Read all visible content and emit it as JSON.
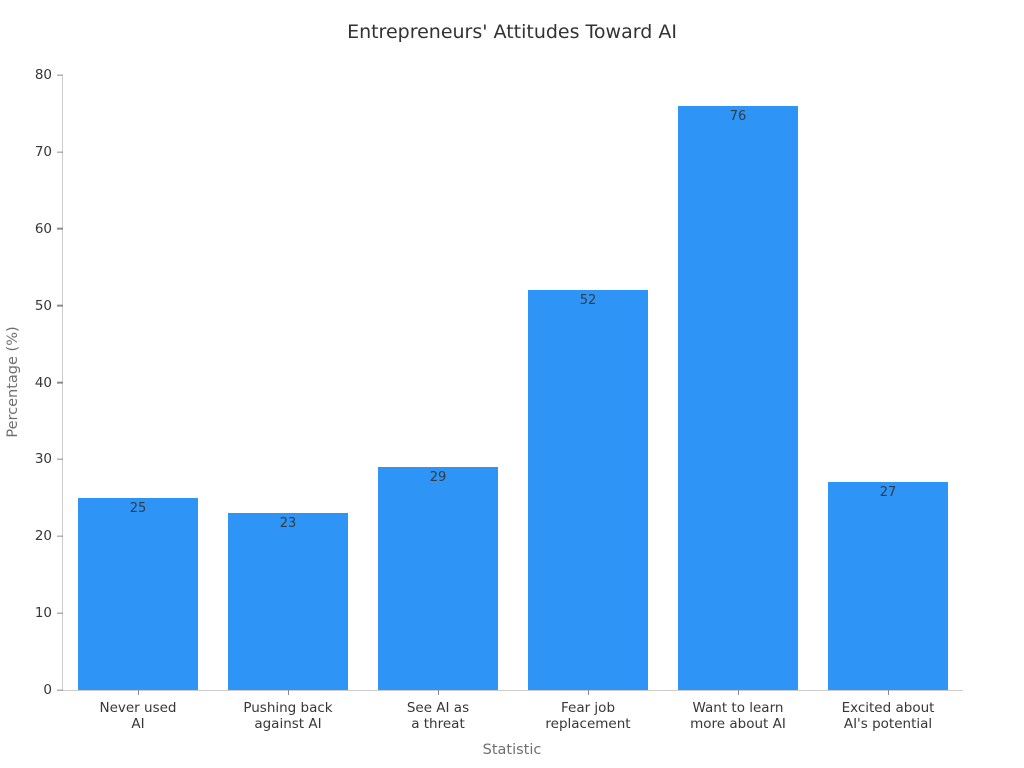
{
  "chart_data": {
    "type": "bar",
    "title": "Entrepreneurs' Attitudes Toward AI",
    "xlabel": "Statistic",
    "ylabel": "Percentage (%)",
    "categories": [
      "Never used\nAI",
      "Pushing back\nagainst AI",
      "See AI as\na threat",
      "Fear job\nreplacement",
      "Want to learn\nmore about AI",
      "Excited about\nAI's potential"
    ],
    "values": [
      25,
      23,
      29,
      52,
      76,
      27
    ],
    "ylim": [
      0,
      80
    ],
    "yticks": [
      0,
      10,
      20,
      30,
      40,
      50,
      60,
      70,
      80
    ],
    "grid": false,
    "legend": "none",
    "value_labels_position": "inside-top",
    "bar_color": "#2e94f5",
    "value_label_color": "#333c46",
    "axis_title_color": "#6f6f6f",
    "tick_label_color": "#373737",
    "spine_color": "#cdcdcd",
    "background_color": "#ffffff"
  }
}
